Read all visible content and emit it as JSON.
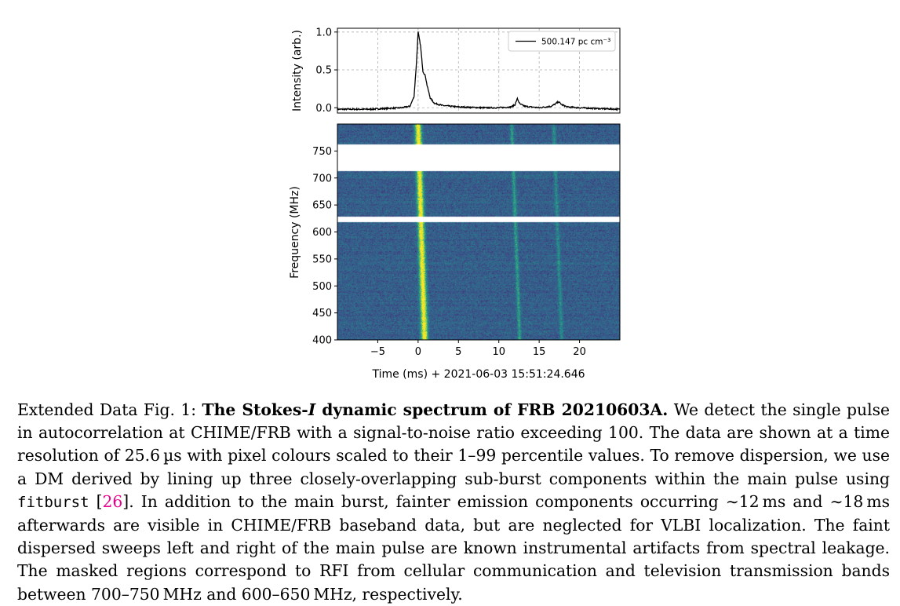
{
  "chart_data": [
    {
      "type": "line",
      "ylabel": "Intensity (arb.)",
      "ylim": [
        -0.07,
        1.05
      ],
      "xlim": [
        -10,
        25
      ],
      "yticks": [
        0.0,
        0.5,
        1.0
      ],
      "ytick_labels": [
        "0.0",
        "0.5",
        "1.0"
      ],
      "grid": true,
      "legend_position": "top-right",
      "series": [
        {
          "name": "500.147 pc cm⁻³",
          "x": [
            -10,
            -8,
            -6,
            -4,
            -2,
            -1,
            -0.5,
            -0.2,
            0,
            0.3,
            0.6,
            0.9,
            1.1,
            1.5,
            2,
            3,
            5,
            8,
            10,
            11.5,
            12,
            12.3,
            12.6,
            13.2,
            14,
            15,
            16.5,
            17,
            17.4,
            17.8,
            18.5,
            20,
            22,
            25
          ],
          "y": [
            -0.02,
            -0.02,
            -0.02,
            -0.01,
            0.0,
            0.02,
            0.15,
            0.6,
            1.0,
            0.82,
            0.48,
            0.42,
            0.3,
            0.13,
            0.06,
            0.03,
            0.01,
            0.0,
            0.0,
            0.01,
            0.04,
            0.12,
            0.05,
            0.02,
            0.01,
            0.0,
            0.02,
            0.05,
            0.08,
            0.04,
            0.01,
            0.0,
            -0.01,
            -0.02
          ]
        }
      ]
    },
    {
      "type": "heatmap",
      "xlabel": "Time (ms) + 2021-06-03 15:51:24.646",
      "ylabel": "Frequency (MHz)",
      "xlim": [
        -10,
        25
      ],
      "ylim": [
        400,
        800
      ],
      "xticks": [
        -5,
        0,
        5,
        10,
        15,
        20
      ],
      "xtick_labels": [
        "−5",
        "0",
        "5",
        "10",
        "15",
        "20"
      ],
      "yticks": [
        400,
        450,
        500,
        550,
        600,
        650,
        700,
        750
      ],
      "ytick_labels": [
        "400",
        "450",
        "500",
        "550",
        "600",
        "650",
        "700",
        "750"
      ],
      "masked_bands_mhz": [
        [
          713,
          762
        ],
        [
          618,
          628
        ]
      ],
      "components": [
        {
          "t_ms_at_400": 0.8,
          "t_ms_at_800": 0.0,
          "strength": 1.0
        },
        {
          "t_ms_at_400": 12.6,
          "t_ms_at_800": 11.6,
          "strength": 0.3
        },
        {
          "t_ms_at_400": 17.8,
          "t_ms_at_800": 16.8,
          "strength": 0.22
        }
      ],
      "colormap": [
        "#440154",
        "#3b528b",
        "#21918c",
        "#5ec962",
        "#fde725"
      ]
    }
  ],
  "caption": {
    "label": "Extended Data Fig. 1:",
    "title_pre": "The Stokes-",
    "title_italic": "I",
    "title_post": " dynamic spectrum of FRB 20210603A.",
    "text1": " We detect the single pulse in autocorrelation at CHIME/FRB with a signal-to-noise ratio exceeding 100. The data are shown at a time resolution of 25.6 µs with pixel colours scaled to their 1–99 percentile values. To remove dispersion, we use a DM derived by lining up three closely-overlapping sub-burst components within the main pulse using ",
    "code": "fitburst",
    "ref_open": " [",
    "ref": "26",
    "ref_close": "]",
    "text2": ". In addition to the main burst, fainter emission components occurring ∼12 ms and ∼18 ms afterwards are visible in CHIME/FRB baseband data, but are neglected for VLBI localization. The faint dispersed sweeps left and right of the main pulse are known instrumental artifacts from spectral leakage. The masked regions correspond to RFI from cellular communication and television transmission bands between 700–750 MHz and 600–650 MHz, respectively."
  }
}
